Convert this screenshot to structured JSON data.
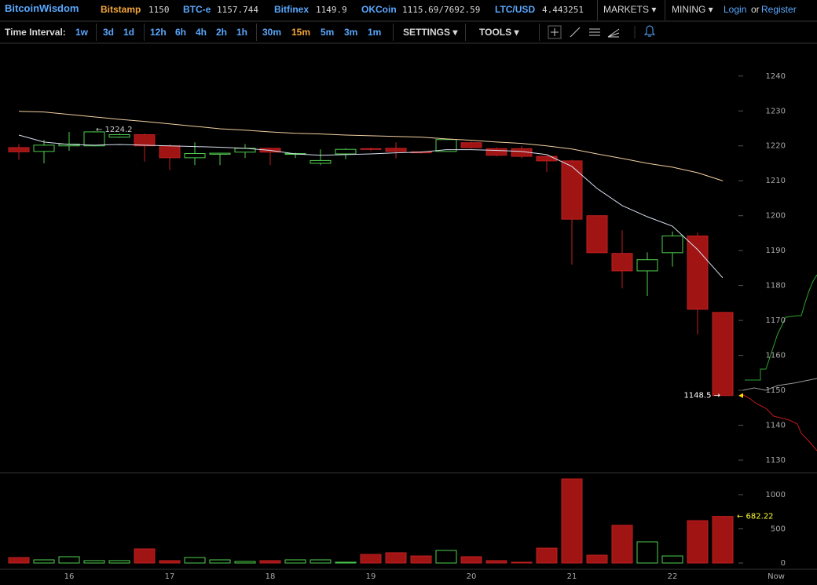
{
  "header": {
    "brand": "BitcoinWisdom",
    "tickers": [
      {
        "exchange": "Bitstamp",
        "price": "1150"
      },
      {
        "exchange": "BTC-e",
        "price": "1157.744"
      },
      {
        "exchange": "Bitfinex",
        "price": "1149.9"
      },
      {
        "exchange": "OKCoin",
        "price": "1115.69/7692.59"
      },
      {
        "exchange": "LTC/USD",
        "price": "4.443251"
      }
    ],
    "menus": [
      "MARKETS",
      "MINING"
    ],
    "login": "Login",
    "or": "or",
    "register": "Register"
  },
  "toolbar": {
    "label": "Time Interval:",
    "intervals": [
      "1w",
      "3d",
      "1d",
      "12h",
      "6h",
      "4h",
      "2h",
      "1h",
      "30m",
      "15m",
      "5m",
      "3m",
      "1m"
    ],
    "selected": "15m",
    "settings": "SETTINGS",
    "tools": "TOOLS"
  },
  "depth_panel": {
    "label": "Now"
  },
  "chart_data": {
    "type": "candlestick",
    "categories": [
      null,
      null,
      "16",
      null,
      null,
      null,
      "17",
      null,
      null,
      null,
      "18",
      null,
      null,
      null,
      "19",
      null,
      null,
      null,
      "20",
      null,
      null,
      null,
      "21",
      null,
      null,
      null,
      "22",
      null,
      null
    ],
    "open": [
      1219.5,
      1218.4,
      1220,
      1220,
      1222.5,
      1223.2,
      1220,
      1216.6,
      1217.6,
      1218.2,
      1219.3,
      1217.6,
      1215,
      1217.7,
      1219.2,
      1219.3,
      1218.3,
      1218.4,
      1220.9,
      1219.2,
      1219.2,
      1217,
      1215.7,
      1200,
      1189.2,
      1184.2,
      1189.4,
      1194.2,
      1172.3
    ],
    "high": [
      1220.5,
      1221.7,
      1224,
      1224.2,
      1223.5,
      1223.5,
      1220.5,
      1221,
      1218,
      1220.5,
      1219.5,
      1218,
      1219,
      1219.3,
      1219.5,
      1221,
      1218.5,
      1222,
      1221.2,
      1219.6,
      1220,
      1217.2,
      1216,
      1200,
      1195.8,
      1189.5,
      1195.5,
      1195.2,
      1172.5
    ],
    "low": [
      1216,
      1215,
      1218.6,
      1220,
      1222.3,
      1215.5,
      1213,
      1214.5,
      1214.5,
      1216.5,
      1214.5,
      1216.5,
      1214.5,
      1216.2,
      1218.5,
      1216.4,
      1217.8,
      1218.3,
      1219.2,
      1217,
      1216.4,
      1212.5,
      1186,
      1189.4,
      1179.2,
      1177,
      1185.4,
      1166,
      1148.5
    ],
    "close": [
      1218.3,
      1220.2,
      1220.5,
      1224,
      1223.2,
      1220,
      1216.6,
      1217.8,
      1217.9,
      1219.3,
      1218.2,
      1217.8,
      1215.8,
      1219,
      1219,
      1218.4,
      1218,
      1221.8,
      1219.5,
      1217.3,
      1217,
      1215.7,
      1199,
      1189.4,
      1184.2,
      1187.4,
      1194.2,
      1173.2,
      1148.5
    ],
    "volume": [
      80,
      46,
      92,
      35,
      35,
      207,
      35,
      80,
      46,
      23,
      35,
      46,
      46,
      12,
      126,
      150,
      103,
      184,
      92,
      35,
      12,
      218,
      1230,
      115,
      552,
      310,
      103,
      620,
      682.22
    ],
    "up_color": "#4fd04f",
    "down_color": "#a01414",
    "moving_averages": [
      {
        "color": "#d8e0f0",
        "values": [
          1223.1,
          1221.1,
          1220.4,
          1220.2,
          1220.4,
          1220.2,
          1220,
          1219.8,
          1219.6,
          1219.3,
          1218.7,
          1217.7,
          1217.3,
          1217.5,
          1217.7,
          1218,
          1218.2,
          1218.9,
          1218.9,
          1218.7,
          1218.4,
          1217.5,
          1214.1,
          1207.8,
          1202.9,
          1199.7,
          1197,
          1190.3,
          1182.2
        ]
      },
      {
        "color": "#f3cfa0",
        "values": [
          1229.9,
          1229.7,
          1229,
          1228.3,
          1227.6,
          1227,
          1226.3,
          1225.6,
          1224.9,
          1224.5,
          1224,
          1223.6,
          1223.4,
          1223.1,
          1222.9,
          1222.7,
          1222.5,
          1222,
          1221.6,
          1221.1,
          1220.7,
          1220,
          1219.1,
          1217.7,
          1216.4,
          1215,
          1213.9,
          1212.3,
          1210
        ]
      }
    ],
    "annotations": [
      {
        "text": "← 1224.2",
        "value": 1224.2,
        "axis": "price",
        "color": "#cccccc"
      },
      {
        "text": "1148.5 →",
        "value": 1148.5,
        "axis": "price",
        "color": "#ffffff"
      },
      {
        "text": "← 682.22",
        "value": 682.22,
        "axis": "volume",
        "color": "#ffff33"
      }
    ],
    "ylim": [
      1126.4,
      1249.4
    ],
    "yticks": [
      1130,
      1140,
      1150,
      1160,
      1170,
      1180,
      1190,
      1200,
      1210,
      1220,
      1230,
      1240
    ],
    "volume_ylim": [
      -92,
      1310
    ],
    "volume_yticks": [
      0,
      500,
      1000
    ]
  }
}
